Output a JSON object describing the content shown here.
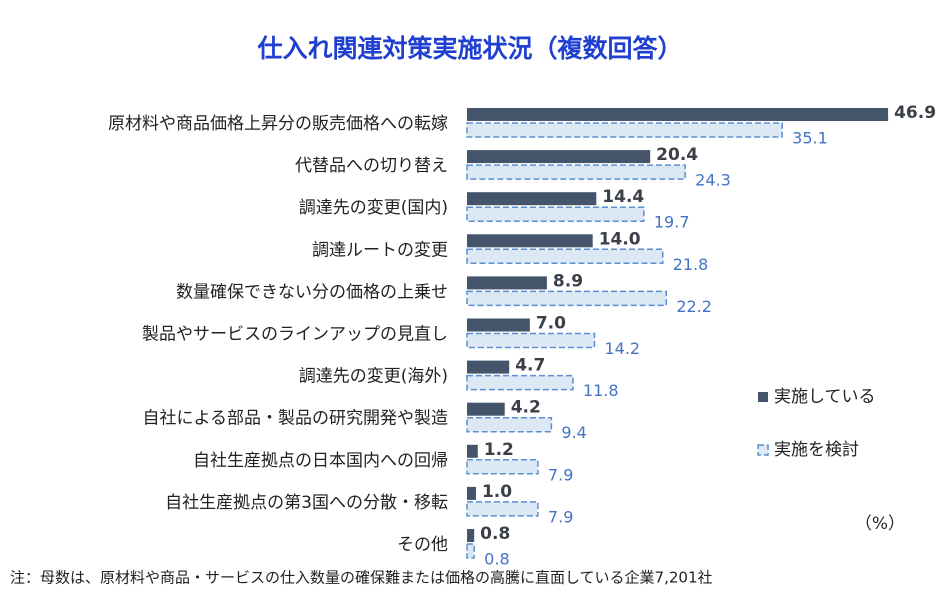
{
  "chart_data": {
    "type": "bar",
    "orientation": "horizontal",
    "title": "仕入れ関連対策実施状況（複数回答）",
    "categories": [
      "原材料や商品価格上昇分の販売価格への転嫁",
      "代替品への切り替え",
      "調達先の変更(国内)",
      "調達ルートの変更",
      "数量確保できない分の価格の上乗せ",
      "製品やサービスのラインアップの見直し",
      "調達先の変更(海外)",
      "自社による部品・製品の研究開発や製造",
      "自社生産拠点の日本国内への回帰",
      "自社生産拠点の第3国への分散・移転",
      "その他"
    ],
    "series": [
      {
        "name": "実施している",
        "color": "#44546a",
        "values": [
          46.9,
          20.4,
          14.4,
          14.0,
          8.9,
          7.0,
          4.7,
          4.2,
          1.2,
          1.0,
          0.8
        ],
        "value_labels": [
          "46.9",
          "20.4",
          "14.4",
          "14.0",
          "8.9",
          "7.0",
          "4.7",
          "4.2",
          "1.2",
          "1.0",
          "0.8"
        ]
      },
      {
        "name": "実施を検討",
        "color": "#dde8f5",
        "stroke": "#5b8fd0",
        "dashed": true,
        "values": [
          35.1,
          24.3,
          19.7,
          21.8,
          22.2,
          14.2,
          11.8,
          9.4,
          7.9,
          7.9,
          0.8
        ]
      }
    ],
    "xlim": [
      0,
      47
    ],
    "unit_label": "（%）",
    "legend": "right",
    "note": "注：母数は、原材料や商品・サービスの仕入数量の確保難または価格の高騰に直面している企業7,201社"
  }
}
